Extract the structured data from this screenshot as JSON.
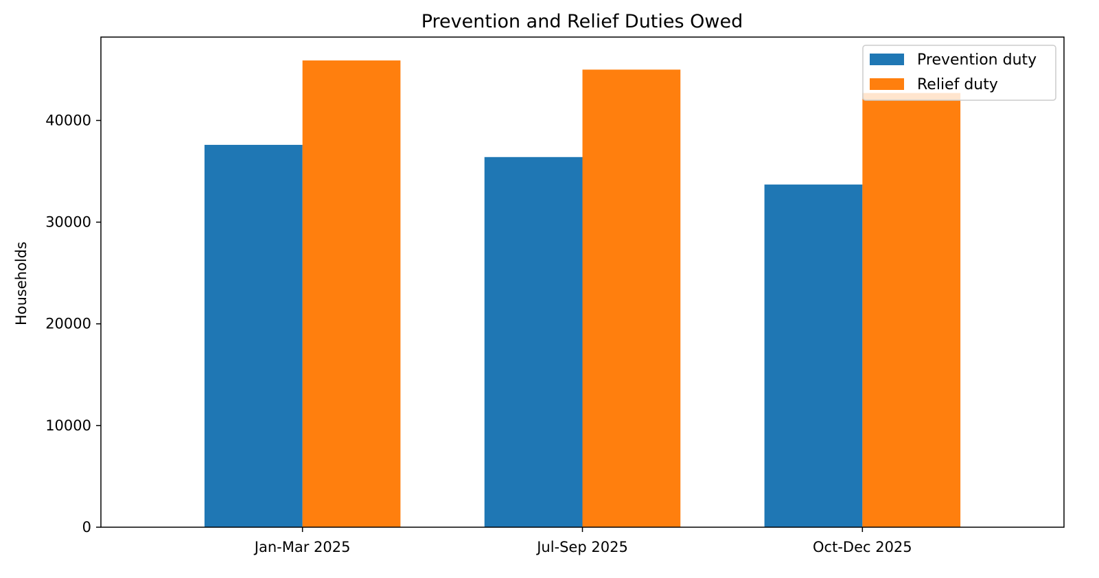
{
  "chart_data": {
    "type": "bar",
    "title": "Prevention and Relief Duties Owed",
    "xlabel": "",
    "ylabel": "Households",
    "categories": [
      "Jan-Mar 2025",
      "Jul-Sep 2025",
      "Oct-Dec 2025"
    ],
    "series": [
      {
        "name": "Prevention duty",
        "color": "#1f77b4",
        "values": [
          37600,
          36400,
          33700
        ]
      },
      {
        "name": "Relief duty",
        "color": "#ff7f0e",
        "values": [
          45900,
          45000,
          42700
        ]
      }
    ],
    "ylim": [
      0,
      48200
    ],
    "yticks": [
      0,
      10000,
      20000,
      30000,
      40000
    ],
    "legend_position": "top-right",
    "grid": false
  }
}
